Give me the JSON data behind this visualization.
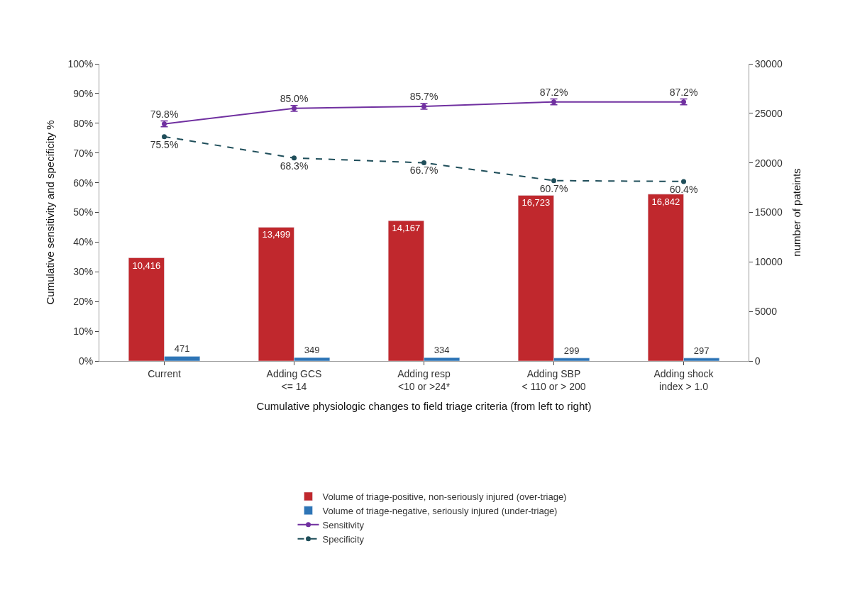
{
  "chart_data": {
    "type": "bar",
    "xlabel": "Cumulative physiologic changes to field triage criteria (from left to right)",
    "ylabel": "Cumulative sensitivity and specificity %",
    "y2label": "number of pateints",
    "categories": [
      "Current",
      "Adding GCS\n<= 14",
      "Adding resp\n<10 or >24*",
      "Adding SBP\n< 110 or > 200",
      "Adding shock\nindex > 1.0"
    ],
    "series": [
      {
        "name": "Volume of triage-positive, non-seriously injured (over-triage)",
        "axis": "y2",
        "color": "#c0282d",
        "values": [
          10416,
          13499,
          14167,
          16723,
          16842
        ],
        "value_labels": [
          "10,416",
          "13,499",
          "14,167",
          "16,723",
          "16,842"
        ]
      },
      {
        "name": "Volume of triage-negative, seriously injured (under-triage)",
        "axis": "y2",
        "color": "#2e75b6",
        "values": [
          471,
          349,
          334,
          299,
          297
        ],
        "value_labels": [
          "471",
          "349",
          "334",
          "299",
          "297"
        ]
      },
      {
        "name": "Sensitivity",
        "type": "line",
        "color": "#7030a0",
        "line_style": "solid",
        "marker": "circle",
        "values": [
          79.8,
          85.0,
          85.7,
          87.2,
          87.2
        ],
        "errors": [
          1,
          1,
          1,
          1,
          1
        ],
        "value_labels": [
          "79.8%",
          "85.0%",
          "85.7%",
          "87.2%",
          "87.2%"
        ]
      },
      {
        "name": "Specificity",
        "type": "line",
        "color": "#1f4e5a",
        "line_style": "dashed",
        "marker": "circle",
        "values": [
          75.5,
          68.3,
          66.7,
          60.7,
          60.4
        ],
        "value_labels": [
          "75.5%",
          "68.3%",
          "66.7%",
          "60.7%",
          "60.4%"
        ]
      }
    ],
    "ylim": [
      0,
      100
    ],
    "yticks": [
      {
        "value": 0,
        "label": "0%"
      },
      {
        "value": 10,
        "label": "10%"
      },
      {
        "value": 20,
        "label": "20%"
      },
      {
        "value": 30,
        "label": "30%"
      },
      {
        "value": 40,
        "label": "40%"
      },
      {
        "value": 50,
        "label": "50%"
      },
      {
        "value": 60,
        "label": "60%"
      },
      {
        "value": 70,
        "label": "70%"
      },
      {
        "value": 80,
        "label": "80%"
      },
      {
        "value": 90,
        "label": "90%"
      },
      {
        "value": 100,
        "label": "100%"
      }
    ],
    "y2lim": [
      0,
      30000
    ],
    "y2ticks": [
      0,
      5000,
      10000,
      15000,
      20000,
      25000,
      30000
    ],
    "legend": "bottom"
  }
}
